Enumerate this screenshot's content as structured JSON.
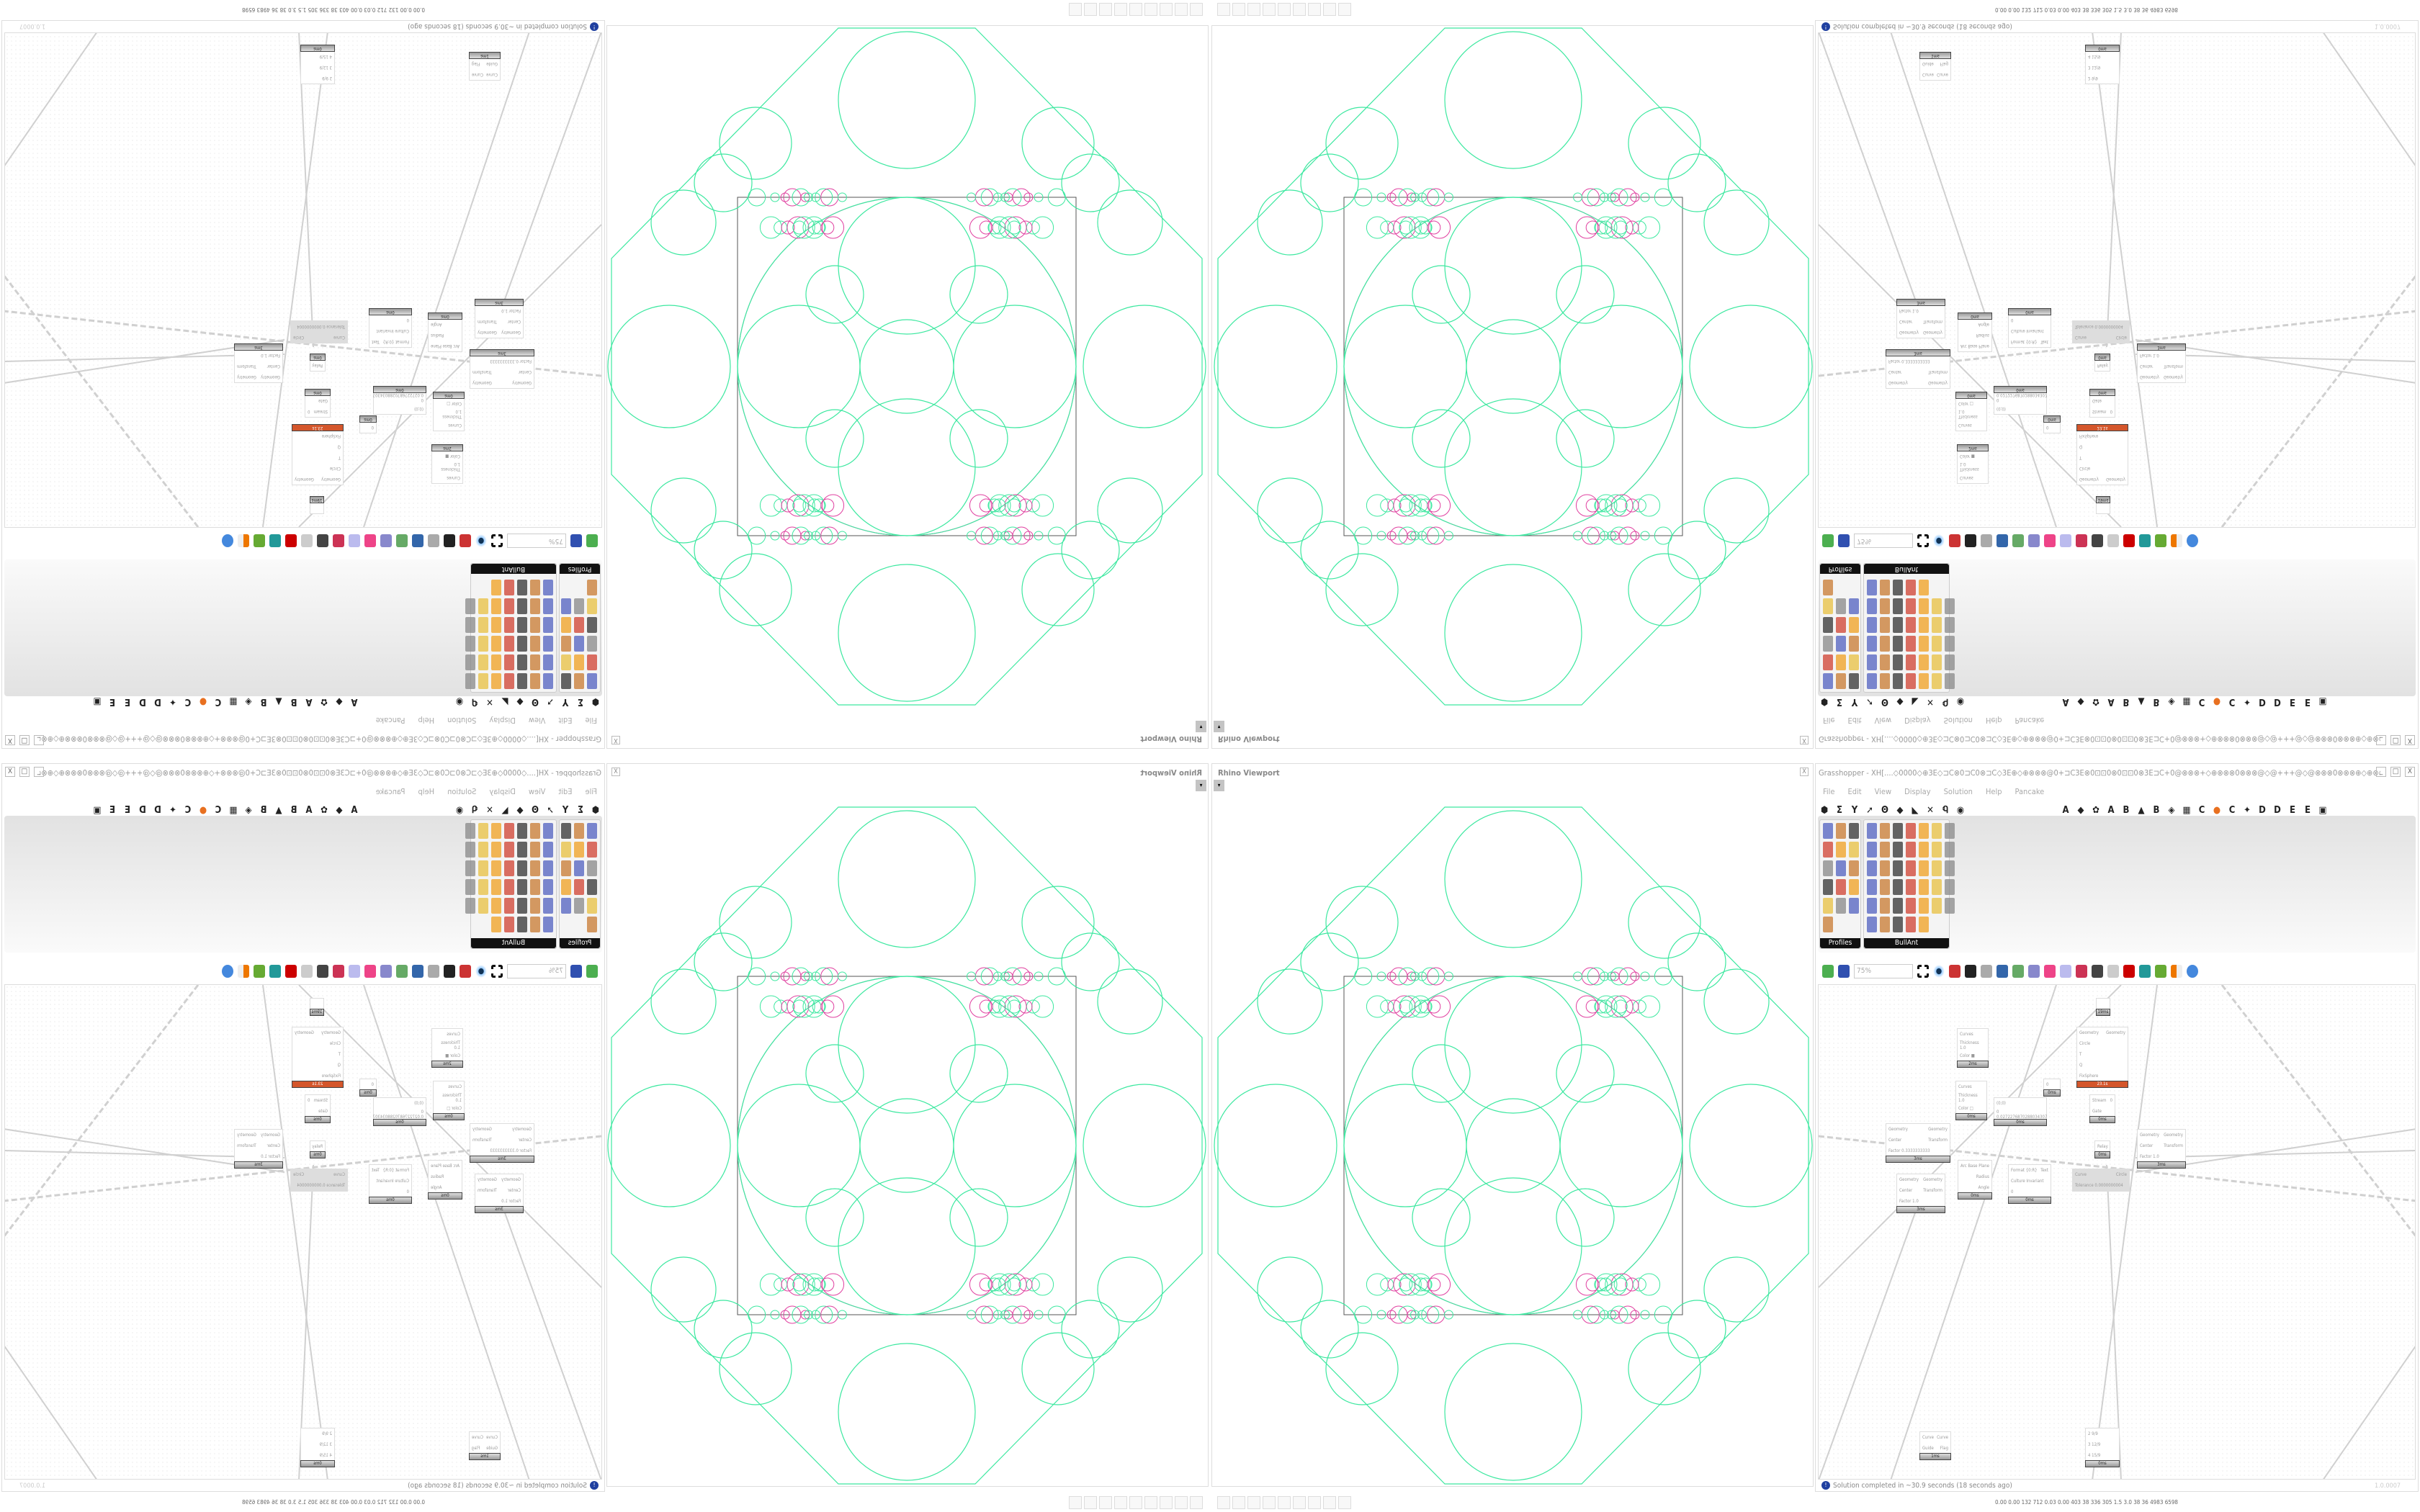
{
  "rhino_viewport": {
    "title": "Rhino Viewport",
    "close": "X",
    "dropdown": "▾"
  },
  "grasshopper": {
    "title": "Grasshopper - XH[....◇0000◇⊕3E◇⊐C⊗0⊐C0⊗⊐C◇3E⊕◇⊕⊗⊗⊗@0+⊐C3E⊗0⊡⊡0⊗0⊡⊡0⊗3E⊐C+0@⊗⊗⊗+◇⊕⊗⊗⊗0⊗⊗⊗@◇@+++@◇@⊗⊗⊗0⊗⊗⊗⊕◇⊕⊗⊗⊗@0+⊐C3E⊗0⊡⊡0⊗0...",
    "window_buttons": [
      "_",
      "□",
      "X"
    ],
    "menu": [
      "File",
      "Edit",
      "View",
      "Display",
      "Solution",
      "Help",
      "Pancake"
    ],
    "tabs_left": [
      "⬢",
      "Σ",
      "Y",
      "➚",
      "Ꙩ",
      "◆",
      "◣",
      "✕",
      "Ꮔ",
      "◉"
    ],
    "tabs_right": [
      "A",
      "◆",
      "✿",
      "A",
      "B",
      "▲",
      "B",
      "◈",
      "▦",
      "C",
      "●",
      "C",
      "✦",
      "D",
      "D",
      "E",
      "E",
      "▣"
    ],
    "panels": [
      {
        "label": "Profiles"
      },
      {
        "label": "BullAnt"
      }
    ],
    "zoom_value": "75%",
    "status": "Solution completed in ~30.9 seconds (18 seconds ago)",
    "version": "1.0.0007",
    "colors": {
      "accent": "#d4562b",
      "status_icon": "#2040a0",
      "geometry": "#3de8a0",
      "guide": "#e040a0"
    }
  },
  "nodes": [
    {
      "in": [
        "Curves",
        "Thickness 1.0",
        "Color ■"
      ],
      "out": [],
      "time": "2ms"
    },
    {
      "in": [
        "Curves",
        "Thickness 1.0",
        "Color □"
      ],
      "out": [],
      "time": "0ms"
    },
    {
      "in": [
        "Geometry",
        "Center",
        "Factor 0.3333333333"
      ],
      "out": [
        "Geometry",
        "Transform"
      ],
      "time": "3ms"
    },
    {
      "in": [
        "Geometry",
        "Circle",
        "T",
        "Q",
        "FixSphere"
      ],
      "out": [
        "Geometry"
      ],
      "time": "23.1s",
      "hot": true
    },
    {
      "in": [
        "0"
      ],
      "out": [],
      "time": "0ms"
    },
    {
      "in": [
        "(0;0)",
        "0 0.0272276870288034307"
      ],
      "out": [],
      "time": "0ms"
    },
    {
      "in": [
        "Stream",
        "Gate"
      ],
      "out": [
        "0"
      ],
      "time": "0ms"
    },
    {
      "in": [
        "Relay"
      ],
      "out": [],
      "time": "0ms"
    },
    {
      "in": [
        "Geometry",
        "Center",
        "Factor 1.0"
      ],
      "out": [
        "Geometry",
        "Transform"
      ],
      "time": "3ms"
    },
    {
      "in": [
        "Curve",
        "Tolerance 0.0000000004"
      ],
      "out": [
        "Circle"
      ],
      "time": ""
    },
    {
      "in": [
        "Arc"
      ],
      "out": [
        "Base Plane",
        "Radius",
        "Angle"
      ],
      "time": "0ms"
    },
    {
      "in": [
        "Format {0:R}",
        "Culture Invariant",
        "0"
      ],
      "out": [
        "Text"
      ],
      "time": "0ms"
    },
    {
      "in": [
        "Geometry",
        "Center",
        "Factor 1.0"
      ],
      "out": [
        "Geometry",
        "Transform"
      ],
      "time": "3ms"
    },
    {
      "in": [
        ""
      ],
      "out": [],
      "time": "19ms"
    },
    {
      "in": [
        "Curve",
        "Guide"
      ],
      "out": [
        "Curve",
        "Flag"
      ],
      "time": "1ms"
    },
    {
      "in": [
        "2 9/9",
        "3 12/9",
        "4 15/9"
      ],
      "out": [],
      "time": "0ms"
    }
  ],
  "taskbar": {
    "icons": [
      "terminal",
      "floppy-64",
      "firefox",
      "inkscape",
      "red-app",
      "calculator",
      "notepad",
      "notepad",
      "document"
    ],
    "perf": "0.00 0.00 132 712 0.03 0.00 403 38 336 305 1.5 3.0 38 36 4983 6598"
  }
}
